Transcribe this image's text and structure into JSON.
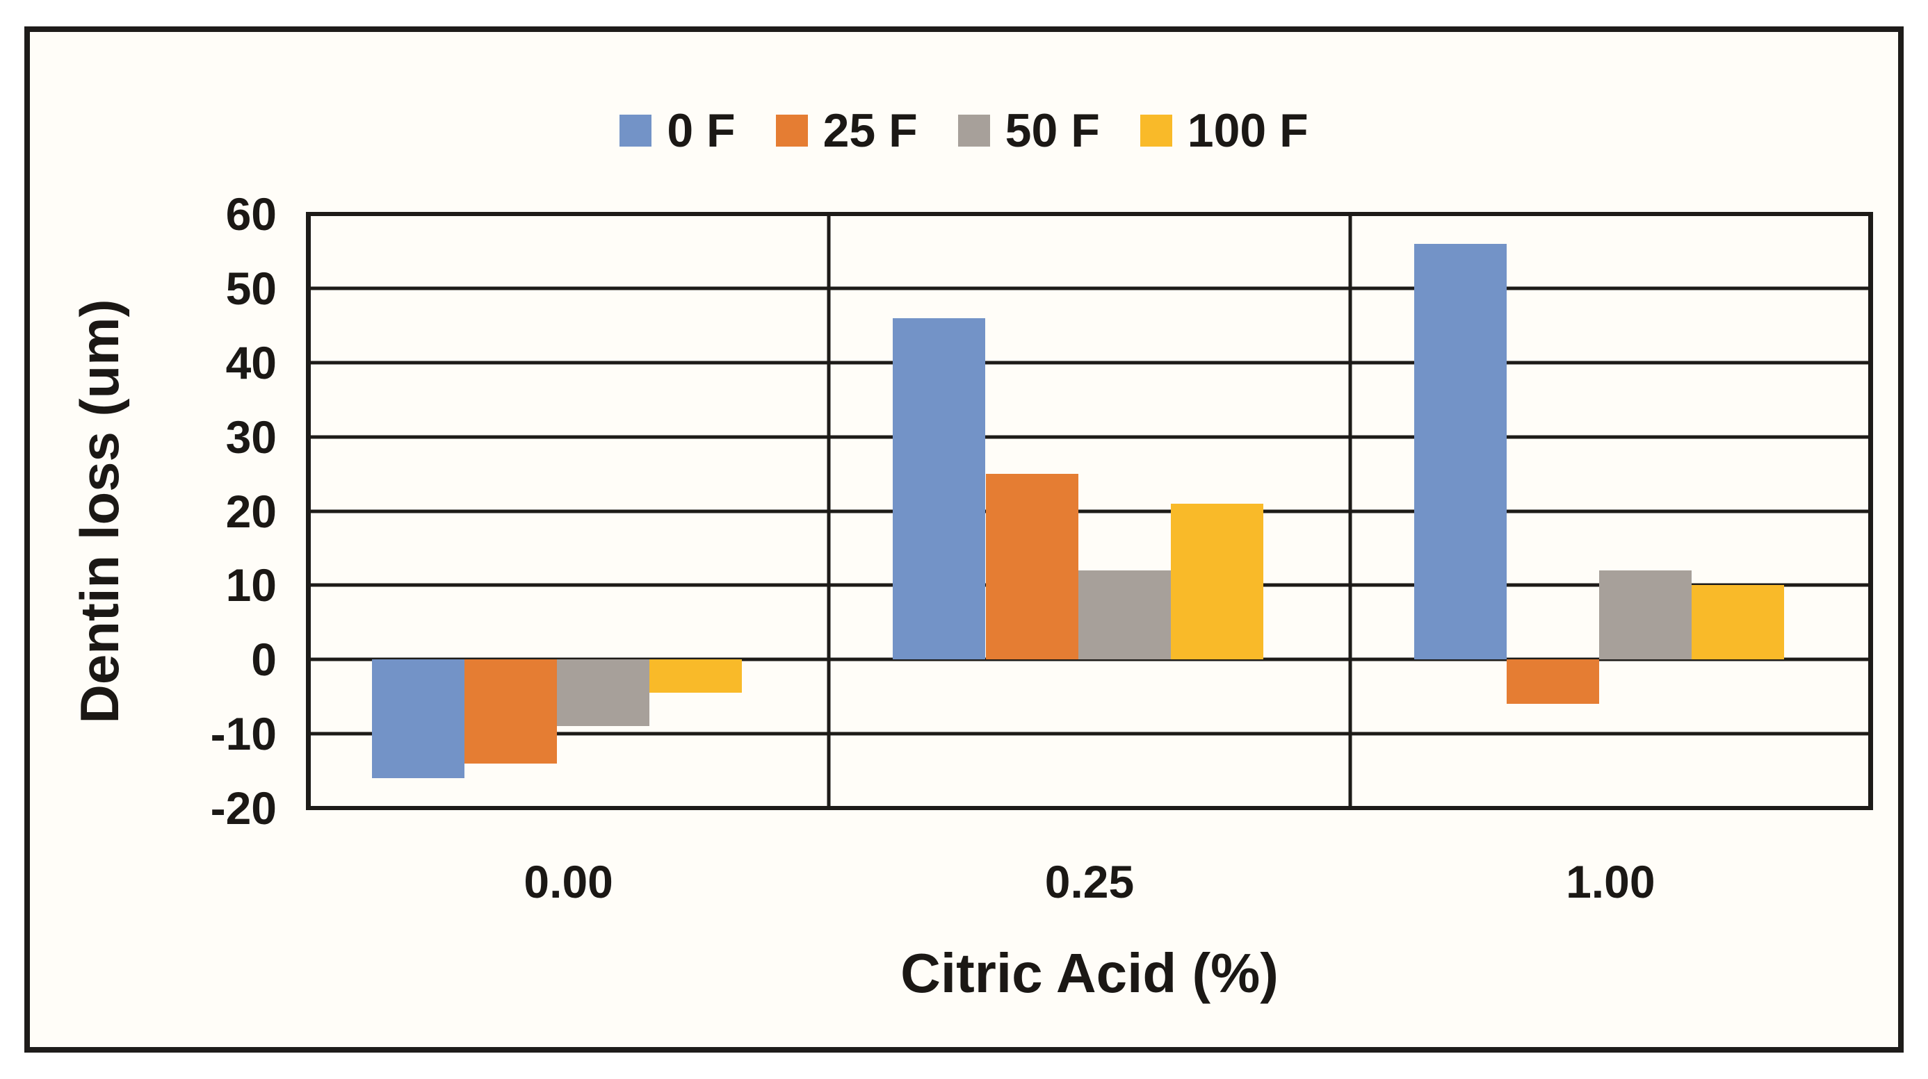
{
  "chart_data": {
    "type": "bar",
    "categories": [
      "0.00",
      "0.25",
      "1.00"
    ],
    "series": [
      {
        "name": "0 F",
        "color": "#7393C7",
        "values": [
          -16,
          46,
          56
        ]
      },
      {
        "name": "25 F",
        "color": "#E57D33",
        "values": [
          -14,
          25,
          -6
        ]
      },
      {
        "name": "50 F",
        "color": "#A7A09A",
        "values": [
          -9,
          12,
          12
        ]
      },
      {
        "name": "100 F",
        "color": "#F9BA29",
        "values": [
          -4.5,
          21,
          10
        ]
      }
    ],
    "xlabel": "Citric Acid (%)",
    "ylabel": "Dentin loss (um)",
    "ylim": [
      -20,
      60
    ],
    "ytick_step": 10,
    "yticks": [
      60,
      50,
      40,
      30,
      20,
      10,
      0,
      -10,
      -20
    ],
    "grid": "horizontal",
    "legend_position": "top-center",
    "frame_color": "#1E1C1A",
    "background_color": "#FFFDF8"
  }
}
